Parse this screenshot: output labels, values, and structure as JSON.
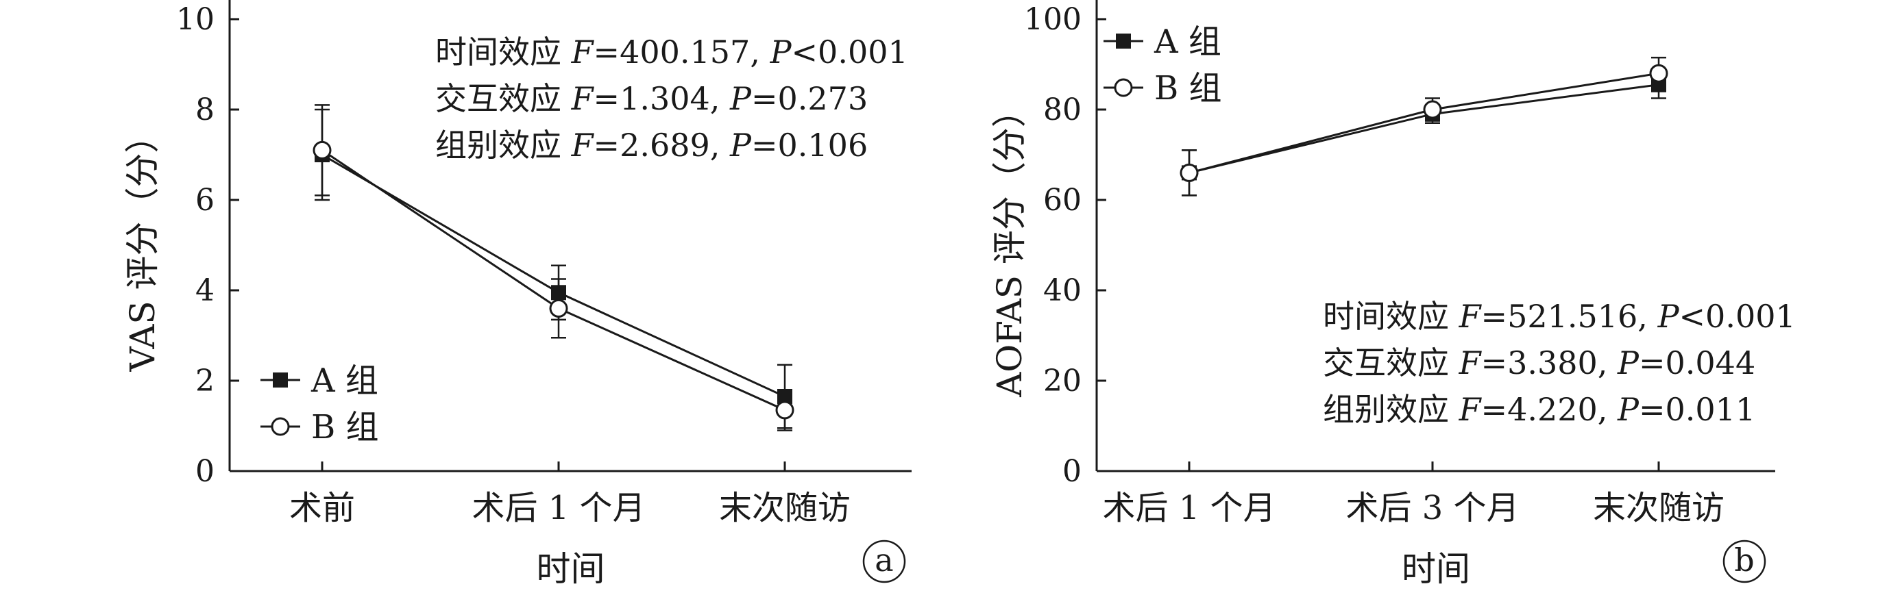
{
  "chart_data": [
    {
      "type": "line",
      "panel_label": "a",
      "xlabel": "时间",
      "ylabel": "VAS 评分（分）",
      "categories": [
        "术前",
        "术后 1 个月",
        "末次随访"
      ],
      "ylim": [
        0,
        10
      ],
      "yticks": [
        0,
        2,
        4,
        6,
        8,
        10
      ],
      "grid": false,
      "legend_position": "bottom-left",
      "series": [
        {
          "name": "A 组",
          "marker": "filled-square",
          "values": [
            7.0,
            3.95,
            1.65
          ],
          "errors": [
            1.0,
            0.6,
            0.7
          ]
        },
        {
          "name": "B 组",
          "marker": "open-circle",
          "values": [
            7.1,
            3.6,
            1.35
          ],
          "errors": [
            1.0,
            0.65,
            0.45
          ]
        }
      ],
      "annotations": [
        {
          "label": "时间效应",
          "F": "400.157",
          "P_op": "<",
          "P": "0.001"
        },
        {
          "label": "交互效应",
          "F": "1.304",
          "P_op": "=",
          "P": "0.273"
        },
        {
          "label": "组别效应",
          "F": "2.689",
          "P_op": "=",
          "P": "0.106"
        }
      ]
    },
    {
      "type": "line",
      "panel_label": "b",
      "xlabel": "时间",
      "ylabel": "AOFAS 评分（分）",
      "categories": [
        "术后 1 个月",
        "术后 3 个月",
        "末次随访"
      ],
      "ylim": [
        0,
        100
      ],
      "yticks": [
        0,
        20,
        40,
        60,
        80,
        100
      ],
      "grid": false,
      "legend_position": "top-left",
      "series": [
        {
          "name": "A 组",
          "marker": "filled-square",
          "values": [
            66,
            79,
            85.5
          ],
          "errors": [
            5,
            2,
            3
          ]
        },
        {
          "name": "B 组",
          "marker": "open-circle",
          "values": [
            66,
            80,
            88
          ],
          "errors": [
            5,
            2.5,
            3.5
          ]
        }
      ],
      "annotations": [
        {
          "label": "时间效应",
          "F": "521.516",
          "P_op": "<",
          "P": "0.001"
        },
        {
          "label": "交互效应",
          "F": "3.380",
          "P_op": "=",
          "P": "0.044"
        },
        {
          "label": "组别效应",
          "F": "4.220",
          "P_op": "=",
          "P": "0.011"
        }
      ]
    }
  ]
}
